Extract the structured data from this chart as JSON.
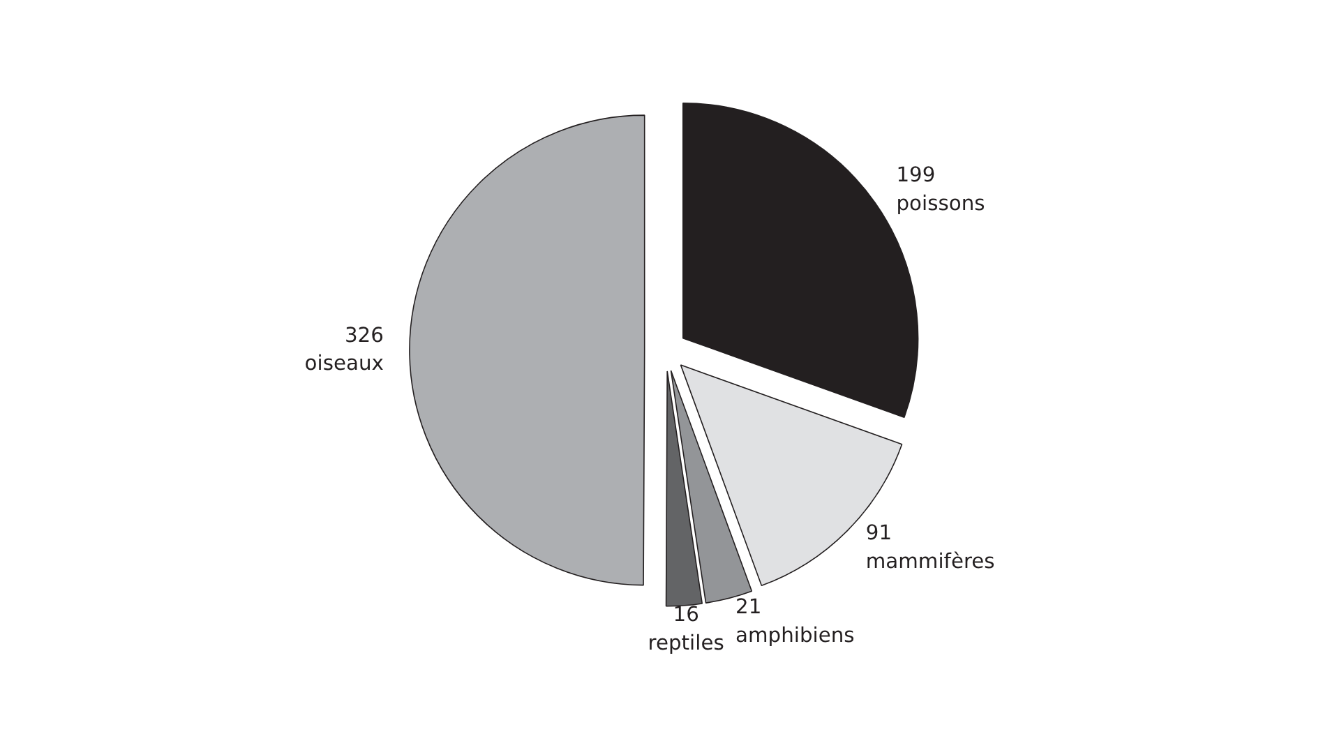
{
  "chart_data": {
    "type": "pie",
    "categories": [
      "poissons",
      "mammifères",
      "amphibiens",
      "reptiles",
      "oiseaux"
    ],
    "values": [
      199,
      91,
      21,
      16,
      326
    ],
    "colors": [
      "#231f20",
      "#e0e1e3",
      "#939598",
      "#636466",
      "#adafb2"
    ],
    "data_labels": true
  }
}
